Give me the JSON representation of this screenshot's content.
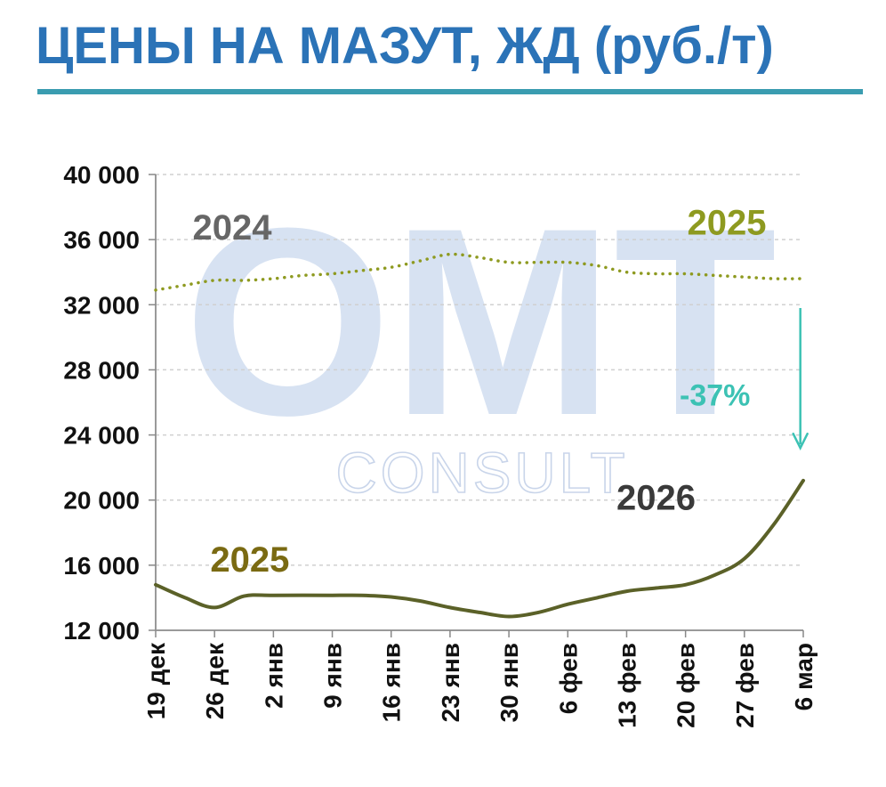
{
  "title": "ЦЕНЫ НА МАЗУТ, ЖД (руб./т)",
  "colors": {
    "title": "#2b73b7",
    "rule": "#3a9cb0",
    "series_2025": "#8e9a20",
    "series_2026": "#5b6128",
    "arrow": "#3cc2b4",
    "grid": "#d0d0d0",
    "label_2024": "#666666",
    "label_2025_top": "#8e9a20",
    "label_2025_bottom": "#7a6a12",
    "label_2026": "#3a3a3a"
  },
  "watermark": {
    "main": "OMT",
    "sub": "CONSULT"
  },
  "chart_data": {
    "type": "line",
    "categories": [
      "19 дек",
      "26 дек",
      "2 янв",
      "9 янв",
      "16 янв",
      "23 янв",
      "30 янв",
      "6 фев",
      "13 фев",
      "20 фев",
      "27 фев",
      "6 мар"
    ],
    "ylim": [
      12000,
      40000
    ],
    "yticks": [
      12000,
      16000,
      20000,
      24000,
      28000,
      32000,
      36000,
      40000
    ],
    "ytick_labels": [
      "12 000",
      "16 000",
      "20 000",
      "24 000",
      "28 000",
      "32 000",
      "36 000",
      "40 000"
    ],
    "grid": true,
    "series": [
      {
        "name": "2025",
        "style": "dotted",
        "points": [
          [
            0,
            32900
          ],
          [
            0.5,
            33200
          ],
          [
            1,
            33500
          ],
          [
            1.5,
            33500
          ],
          [
            2,
            33600
          ],
          [
            2.5,
            33800
          ],
          [
            3,
            33900
          ],
          [
            3.5,
            34100
          ],
          [
            4,
            34300
          ],
          [
            4.5,
            34700
          ],
          [
            5,
            35100
          ],
          [
            5.5,
            34900
          ],
          [
            6,
            34600
          ],
          [
            6.5,
            34600
          ],
          [
            7,
            34600
          ],
          [
            7.5,
            34400
          ],
          [
            8,
            34000
          ],
          [
            8.5,
            33900
          ],
          [
            9,
            33900
          ],
          [
            9.5,
            33800
          ],
          [
            10,
            33700
          ],
          [
            10.5,
            33600
          ],
          [
            11,
            33600
          ]
        ]
      },
      {
        "name": "2026",
        "style": "solid",
        "points": [
          [
            0,
            14800
          ],
          [
            0.5,
            14000
          ],
          [
            1,
            13400
          ],
          [
            1.5,
            14100
          ],
          [
            2,
            14150
          ],
          [
            3,
            14150
          ],
          [
            3.5,
            14150
          ],
          [
            4,
            14050
          ],
          [
            4.5,
            13800
          ],
          [
            5,
            13400
          ],
          [
            5.5,
            13100
          ],
          [
            6,
            12850
          ],
          [
            6.5,
            13100
          ],
          [
            7,
            13600
          ],
          [
            7.5,
            14000
          ],
          [
            8,
            14400
          ],
          [
            8.5,
            14600
          ],
          [
            9,
            14800
          ],
          [
            9.5,
            15400
          ],
          [
            10,
            16400
          ],
          [
            10.5,
            18500
          ],
          [
            11,
            21200
          ]
        ]
      }
    ],
    "annotations": [
      {
        "text": "2024",
        "x": 1.3,
        "y": 36000,
        "color_key": "label_2024"
      },
      {
        "text": "2025",
        "x": 9.7,
        "y": 36300,
        "color_key": "label_2025_top"
      },
      {
        "text": "2025",
        "x": 1.6,
        "y": 15600,
        "color_key": "label_2025_bottom"
      },
      {
        "text": "2026",
        "x": 8.5,
        "y": 19400,
        "color_key": "label_2026"
      },
      {
        "text": "-37%",
        "x": 9.5,
        "y": 25800,
        "color_key": "arrow"
      }
    ],
    "arrow": {
      "x": 10.95,
      "y_from": 31800,
      "y_to": 23200
    }
  }
}
